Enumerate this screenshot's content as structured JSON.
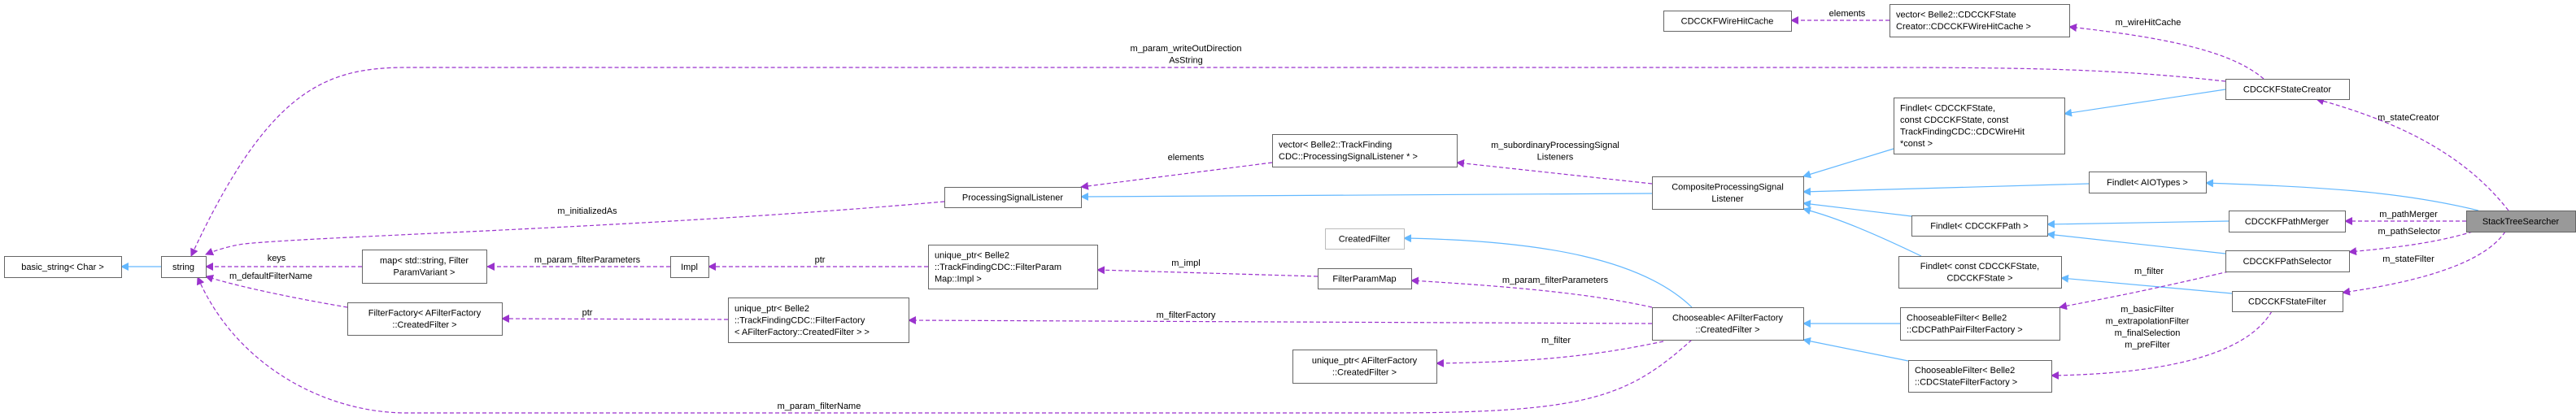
{
  "diagram": {
    "colors": {
      "inheritance": "#63b8ff",
      "usage": "#9a32cd",
      "focus_fill": "#999999"
    },
    "nodes": [
      {
        "id": "basic_string",
        "lines": [
          "basic_string< Char >"
        ]
      },
      {
        "id": "string",
        "lines": [
          "string"
        ]
      },
      {
        "id": "map",
        "lines": [
          "map< std::string, Filter",
          "ParamVariant >"
        ]
      },
      {
        "id": "impl",
        "lines": [
          "Impl"
        ]
      },
      {
        "id": "filterfactory",
        "lines": [
          "FilterFactory< AFilterFactory",
          "::CreatedFilter >"
        ]
      },
      {
        "id": "uptr_filterfactory",
        "lines": [
          "unique_ptr< Belle2",
          "::TrackFindingCDC::FilterFactory",
          "< AFilterFactory::CreatedFilter > >"
        ]
      },
      {
        "id": "psl",
        "lines": [
          "ProcessingSignalListener"
        ]
      },
      {
        "id": "vec_psl",
        "lines": [
          "vector< Belle2::TrackFinding",
          "CDC::ProcessingSignalListener * >"
        ]
      },
      {
        "id": "createdfilter",
        "lines": [
          "CreatedFilter"
        ]
      },
      {
        "id": "uptr_impl",
        "lines": [
          "unique_ptr< Belle2",
          "::TrackFindingCDC::FilterParam",
          "Map::Impl >"
        ]
      },
      {
        "id": "filterparammap",
        "lines": [
          "FilterParamMap"
        ]
      },
      {
        "id": "uptr_afilter",
        "lines": [
          "unique_ptr< AFilterFactory",
          "::CreatedFilter >"
        ]
      },
      {
        "id": "wirehitcache",
        "lines": [
          "CDCCKFWireHitCache"
        ]
      },
      {
        "id": "composite",
        "lines": [
          "CompositeProcessingSignal",
          "Listener"
        ]
      },
      {
        "id": "chooseable",
        "lines": [
          "Chooseable< AFilterFactory",
          "::CreatedFilter >"
        ]
      },
      {
        "id": "vec_wirehitcache",
        "lines": [
          "vector< Belle2::CDCCKFState",
          "Creator::CDCCKFWireHitCache >"
        ]
      },
      {
        "id": "findlet_state",
        "lines": [
          "Findlet< CDCCKFState,",
          "const CDCCKFState, const",
          "TrackFindingCDC::CDCWireHit",
          "*const >"
        ]
      },
      {
        "id": "findlet_aio",
        "lines": [
          "Findlet< AIOTypes >"
        ]
      },
      {
        "id": "findlet_path",
        "lines": [
          "Findlet< CDCCKFPath >"
        ]
      },
      {
        "id": "findlet_conststate",
        "lines": [
          "Findlet< const CDCCKFState,",
          "CDCCKFState >"
        ]
      },
      {
        "id": "cf_pathpair",
        "lines": [
          "ChooseableFilter< Belle2",
          "::CDCPathPairFilterFactory >"
        ]
      },
      {
        "id": "cf_state",
        "lines": [
          "ChooseableFilter< Belle2",
          "::CDCStateFilterFactory >"
        ]
      },
      {
        "id": "statecreator",
        "lines": [
          "CDCCKFStateCreator"
        ]
      },
      {
        "id": "pathmerger",
        "lines": [
          "CDCCKFPathMerger"
        ]
      },
      {
        "id": "pathselector",
        "lines": [
          "CDCCKFPathSelector"
        ]
      },
      {
        "id": "statefilter",
        "lines": [
          "CDCCKFStateFilter"
        ]
      },
      {
        "id": "stacktreesearcher",
        "lines": [
          "StackTreeSearcher"
        ]
      }
    ],
    "edges": [
      {
        "id": "e1",
        "kind": "inheritance",
        "from": "string",
        "to": "basic_string",
        "label": []
      },
      {
        "id": "e2",
        "kind": "inheritance",
        "from": "composite",
        "to": "psl",
        "label": []
      },
      {
        "id": "e3",
        "kind": "inheritance",
        "from": "findlet_state",
        "to": "composite",
        "label": []
      },
      {
        "id": "e4",
        "kind": "inheritance",
        "from": "findlet_aio",
        "to": "composite",
        "label": []
      },
      {
        "id": "e5",
        "kind": "inheritance",
        "from": "findlet_path",
        "to": "composite",
        "label": []
      },
      {
        "id": "e6",
        "kind": "inheritance",
        "from": "findlet_conststate",
        "to": "composite",
        "label": []
      },
      {
        "id": "e7",
        "kind": "inheritance",
        "from": "statecreator",
        "to": "findlet_state",
        "label": []
      },
      {
        "id": "e8",
        "kind": "inheritance",
        "from": "stacktreesearcher",
        "to": "findlet_aio",
        "label": []
      },
      {
        "id": "e9",
        "kind": "inheritance",
        "from": "pathmerger",
        "to": "findlet_path",
        "label": []
      },
      {
        "id": "e10",
        "kind": "inheritance",
        "from": "pathselector",
        "to": "findlet_path",
        "label": []
      },
      {
        "id": "e11",
        "kind": "inheritance",
        "from": "statefilter",
        "to": "findlet_conststate",
        "label": []
      },
      {
        "id": "e12",
        "kind": "inheritance",
        "from": "chooseable",
        "to": "createdfilter",
        "label": []
      },
      {
        "id": "e13",
        "kind": "inheritance",
        "from": "cf_pathpair",
        "to": "chooseable",
        "label": []
      },
      {
        "id": "e14",
        "kind": "inheritance",
        "from": "cf_state",
        "to": "chooseable",
        "label": []
      },
      {
        "id": "u1",
        "kind": "usage",
        "from": "map",
        "to": "string",
        "label": [
          "keys"
        ]
      },
      {
        "id": "u2",
        "kind": "usage",
        "from": "filterfactory",
        "to": "string",
        "label": [
          "m_defaultFilterName"
        ]
      },
      {
        "id": "u3",
        "kind": "usage",
        "from": "psl",
        "to": "string",
        "label": [
          "m_initializedAs"
        ]
      },
      {
        "id": "u4",
        "kind": "usage",
        "from": "statecreator",
        "to": "string",
        "label": [
          "m_param_writeOutDirection",
          "AsString"
        ]
      },
      {
        "id": "u5",
        "kind": "usage",
        "from": "chooseable",
        "to": "string",
        "label": [
          "m_param_filterName"
        ]
      },
      {
        "id": "u6",
        "kind": "usage",
        "from": "impl",
        "to": "map",
        "label": [
          "m_param_filterParameters"
        ]
      },
      {
        "id": "u7",
        "kind": "usage",
        "from": "uptr_impl",
        "to": "impl",
        "label": [
          "ptr"
        ]
      },
      {
        "id": "u8",
        "kind": "usage",
        "from": "uptr_filterfactory",
        "to": "filterfactory",
        "label": [
          "ptr"
        ]
      },
      {
        "id": "u9",
        "kind": "usage",
        "from": "filterparammap",
        "to": "uptr_impl",
        "label": [
          "m_impl"
        ]
      },
      {
        "id": "u10",
        "kind": "usage",
        "from": "vec_psl",
        "to": "psl",
        "label": [
          "elements"
        ]
      },
      {
        "id": "u11",
        "kind": "usage",
        "from": "composite",
        "to": "vec_psl",
        "label": [
          "m_subordinaryProcessingSignal",
          "Listeners"
        ]
      },
      {
        "id": "u12",
        "kind": "usage",
        "from": "chooseable",
        "to": "filterparammap",
        "label": [
          "m_param_filterParameters"
        ]
      },
      {
        "id": "u13",
        "kind": "usage",
        "from": "chooseable",
        "to": "uptr_filterfactory",
        "label": [
          "m_filterFactory"
        ]
      },
      {
        "id": "u14",
        "kind": "usage",
        "from": "chooseable",
        "to": "uptr_afilter",
        "label": [
          "m_filter"
        ]
      },
      {
        "id": "u15",
        "kind": "usage",
        "from": "vec_wirehitcache",
        "to": "wirehitcache",
        "label": [
          "elements"
        ]
      },
      {
        "id": "u16",
        "kind": "usage",
        "from": "statecreator",
        "to": "vec_wirehitcache",
        "label": [
          "m_wireHitCache"
        ]
      },
      {
        "id": "u17",
        "kind": "usage",
        "from": "stacktreesearcher",
        "to": "statecreator",
        "label": [
          "m_stateCreator"
        ]
      },
      {
        "id": "u18",
        "kind": "usage",
        "from": "stacktreesearcher",
        "to": "pathmerger",
        "label": [
          "m_pathMerger"
        ]
      },
      {
        "id": "u19",
        "kind": "usage",
        "from": "stacktreesearcher",
        "to": "pathselector",
        "label": [
          "m_pathSelector"
        ]
      },
      {
        "id": "u20",
        "kind": "usage",
        "from": "stacktreesearcher",
        "to": "statefilter",
        "label": [
          "m_stateFilter"
        ]
      },
      {
        "id": "u21",
        "kind": "usage",
        "from": "pathselector",
        "to": "cf_pathpair",
        "label": [
          "m_filter"
        ]
      },
      {
        "id": "u22",
        "kind": "usage",
        "from": "statefilter",
        "to": "cf_state",
        "label": [
          "m_basicFilter",
          "m_extrapolationFilter",
          "m_finalSelection",
          "m_preFilter"
        ]
      }
    ]
  }
}
